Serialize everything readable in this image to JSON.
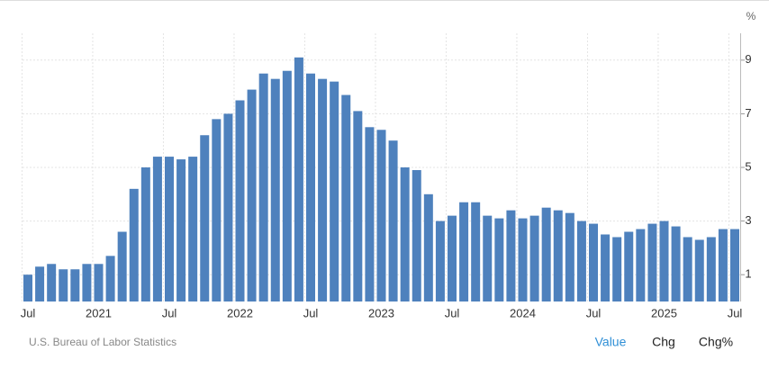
{
  "chart_data": {
    "type": "bar",
    "unit": "%",
    "source": "U.S. Bureau of Labor Statistics",
    "buttons": [
      "Value",
      "Chg",
      "Chg%"
    ],
    "categories": [
      "Jul",
      null,
      null,
      null,
      null,
      null,
      "2021",
      null,
      null,
      null,
      null,
      null,
      "Jul",
      null,
      null,
      null,
      null,
      null,
      "2022",
      null,
      null,
      null,
      null,
      null,
      "Jul",
      null,
      null,
      null,
      null,
      null,
      "2023",
      null,
      null,
      null,
      null,
      null,
      "Jul",
      null,
      null,
      null,
      null,
      null,
      "2024",
      null,
      null,
      null,
      null,
      null,
      "Jul",
      null,
      null,
      null,
      null,
      null,
      "2025",
      null,
      null,
      null,
      null,
      null,
      "Jul"
    ],
    "values": [
      1.0,
      1.3,
      1.4,
      1.2,
      1.2,
      1.4,
      1.4,
      1.7,
      2.6,
      4.2,
      5.0,
      5.4,
      5.4,
      5.3,
      5.4,
      6.2,
      6.8,
      7.0,
      7.5,
      7.9,
      8.5,
      8.3,
      8.6,
      9.1,
      8.5,
      8.3,
      8.2,
      7.7,
      7.1,
      6.5,
      6.4,
      6.0,
      5.0,
      4.9,
      4.0,
      3.0,
      3.2,
      3.7,
      3.7,
      3.2,
      3.1,
      3.4,
      3.1,
      3.2,
      3.5,
      3.4,
      3.3,
      3.0,
      2.9,
      2.5,
      2.4,
      2.6,
      2.7,
      2.9,
      3.0,
      2.8,
      2.4,
      2.3,
      2.4,
      2.7,
      2.7
    ],
    "color": "#4e81bd",
    "ylim": [
      0,
      10
    ],
    "yticks": [
      1,
      3,
      5,
      7,
      9
    ],
    "grid": true
  }
}
